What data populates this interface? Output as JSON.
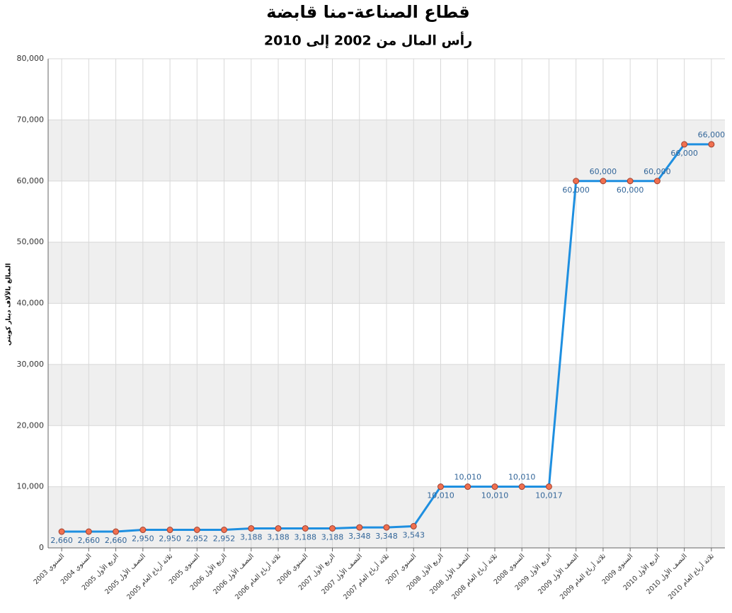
{
  "chart_data": {
    "type": "line",
    "title": "قطاع الصناعة-منا قابضة",
    "subtitle": "رأس المال من 2002 إلى 2010",
    "y_label": "المبالغ بالآلاف دينار كويتي",
    "categories": [
      "السنوي 2003",
      "السنوي 2004",
      "الربع الأول 2005",
      "النصف الأول 2005",
      "ثلاثة أرباع العام 2005",
      "السنوي 2005",
      "الربع الأول 2006",
      "النصف الأول 2006",
      "ثلاثة أرباع العام 2006",
      "السنوي 2006",
      "الربع الأول 2007",
      "النصف الأول 2007",
      "ثلاثة أرباع العام 2007",
      "السنوي 2007",
      "الربع الأول 2008",
      "النصف الأول 2008",
      "ثلاثة أرباع العام 2008",
      "السنوي 2008",
      "الربع الأول 2009",
      "النصف الأول 2009",
      "ثلاثة أرباع العام 2009",
      "السنوي 2009",
      "الربع الأول 2010",
      "النصف الأول 2010",
      "ثلاثة أرباع العام 2010"
    ],
    "values": [
      2660,
      2660,
      2660,
      2950,
      2950,
      2952,
      2952,
      3188,
      3188,
      3188,
      3188,
      3348,
      3348,
      3543,
      10010,
      10010,
      10010,
      10010,
      10017,
      60000,
      60000,
      60000,
      60000,
      66000,
      66000
    ],
    "value_labels": [
      "2,660",
      "2,660",
      "2,660",
      "2,950",
      "2,950",
      "2,952",
      "2,952",
      "3,188",
      "3,188",
      "3,188",
      "3,188",
      "3,348",
      "3,348",
      "3,543",
      "10,010",
      "10,010",
      "10,010",
      "10,010",
      "10,017",
      "60,000",
      "60,000",
      "60,000",
      "60,000",
      "66,000",
      "66,000"
    ],
    "color": "#1e8fe0",
    "marker_color": "#f07050",
    "ylim": [
      0,
      80000
    ],
    "yticks": [
      0,
      {
        "value": 10000,
        "label": "10,000"
      },
      {
        "value": 20000,
        "label": "20,000"
      },
      {
        "value": 30000,
        "label": "30,000"
      },
      {
        "value": 40000,
        "label": "40,000"
      },
      {
        "value": 50000,
        "label": "50,000"
      },
      {
        "value": 60000,
        "label": "60,000"
      },
      {
        "value": 70000,
        "label": "70,000"
      },
      {
        "value": 80000,
        "label": "80,000"
      }
    ],
    "grid": true
  }
}
